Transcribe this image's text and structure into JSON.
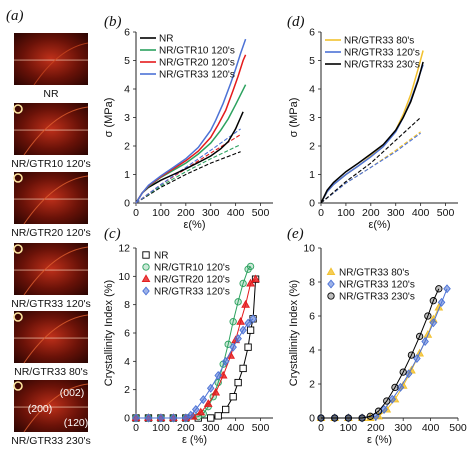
{
  "panel_a": {
    "letter": "(a)",
    "images": [
      {
        "caption": "NR"
      },
      {
        "caption": "NR/GTR10 120's"
      },
      {
        "caption": "NR/GTR20 120's"
      },
      {
        "caption": "NR/GTR33 120's"
      },
      {
        "caption": "NR/GTR33 80's"
      },
      {
        "caption": "NR/GTR33 230's",
        "labels": [
          "(002)",
          "(200)",
          "(120)"
        ]
      }
    ]
  },
  "colors": {
    "nr": "#000000",
    "gtr10": "#2ca25f",
    "gtr20": "#e41a1c",
    "gtr33": "#4c72d6",
    "gtr33_80": "#f2c12e"
  },
  "chart_data": [
    {
      "id": "b",
      "letter": "(b)",
      "type": "line",
      "xlabel": "ε(%)",
      "ylabel": "σ (MPa)",
      "xlim": [
        0,
        550
      ],
      "ylim": [
        0,
        6
      ],
      "xticks": [
        0,
        100,
        200,
        300,
        400,
        500
      ],
      "yticks": [
        0,
        1,
        2,
        3,
        4,
        5,
        6
      ],
      "legend_position": "top-left",
      "series": [
        {
          "name": "NR",
          "color": "#000000",
          "x": [
            0,
            25,
            50,
            100,
            150,
            200,
            250,
            300,
            340,
            370,
            400,
            420,
            430
          ],
          "y": [
            0,
            0.35,
            0.55,
            0.8,
            1.0,
            1.2,
            1.42,
            1.65,
            1.9,
            2.15,
            2.6,
            3.0,
            3.2
          ]
        },
        {
          "name": "NR/GTR10 120's",
          "color": "#2ca25f",
          "x": [
            0,
            25,
            50,
            100,
            150,
            200,
            250,
            300,
            340,
            370,
            400,
            420,
            440
          ],
          "y": [
            0,
            0.35,
            0.58,
            0.9,
            1.15,
            1.4,
            1.72,
            2.1,
            2.55,
            2.95,
            3.45,
            3.8,
            4.15
          ]
        },
        {
          "name": "NR/GTR20 120's",
          "color": "#e41a1c",
          "x": [
            0,
            25,
            50,
            100,
            150,
            200,
            250,
            300,
            330,
            360,
            390,
            410,
            430,
            440
          ],
          "y": [
            0,
            0.35,
            0.6,
            0.92,
            1.2,
            1.48,
            1.82,
            2.3,
            2.75,
            3.25,
            3.95,
            4.45,
            5.0,
            5.2
          ]
        },
        {
          "name": "NR/GTR33 120's",
          "color": "#4c72d6",
          "x": [
            0,
            25,
            50,
            100,
            150,
            200,
            250,
            300,
            320,
            350,
            380,
            400,
            420,
            440
          ],
          "y": [
            0,
            0.35,
            0.62,
            0.95,
            1.25,
            1.55,
            1.95,
            2.55,
            2.9,
            3.5,
            4.2,
            4.7,
            5.25,
            5.75
          ]
        }
      ],
      "fits": [
        {
          "color": "#000000",
          "x": [
            0,
            100,
            200,
            300,
            420
          ],
          "y": [
            0,
            0.55,
            1.0,
            1.4,
            1.8
          ]
        },
        {
          "color": "#2ca25f",
          "x": [
            0,
            100,
            200,
            300,
            420
          ],
          "y": [
            0,
            0.6,
            1.1,
            1.55,
            2.05
          ]
        },
        {
          "color": "#e41a1c",
          "x": [
            0,
            100,
            200,
            300,
            420
          ],
          "y": [
            0,
            0.65,
            1.2,
            1.75,
            2.4
          ]
        },
        {
          "color": "#4c72d6",
          "x": [
            0,
            100,
            200,
            300,
            420
          ],
          "y": [
            0,
            0.65,
            1.25,
            1.85,
            2.6
          ]
        }
      ]
    },
    {
      "id": "d",
      "letter": "(d)",
      "type": "line",
      "xlabel": "ε(%)",
      "ylabel": "σ (MPa)",
      "xlim": [
        0,
        550
      ],
      "ylim": [
        0,
        6
      ],
      "xticks": [
        0,
        100,
        200,
        300,
        400,
        500
      ],
      "yticks": [
        0,
        1,
        2,
        3,
        4,
        5,
        6
      ],
      "legend_position": "top-left",
      "series": [
        {
          "name": "NR/GTR33 80's",
          "color": "#f2c12e",
          "x": [
            0,
            25,
            50,
            100,
            150,
            200,
            250,
            300,
            330,
            360,
            390,
            410
          ],
          "y": [
            0,
            0.4,
            0.65,
            1.0,
            1.3,
            1.65,
            2.0,
            2.55,
            3.1,
            3.8,
            4.7,
            5.35
          ]
        },
        {
          "name": "NR/GTR33 120's",
          "color": "#4c72d6",
          "x": [
            0,
            25,
            50,
            100,
            150,
            200,
            250,
            300,
            330,
            360,
            390,
            410
          ],
          "y": [
            0,
            0.4,
            0.65,
            1.0,
            1.3,
            1.62,
            1.98,
            2.5,
            3.0,
            3.6,
            4.35,
            4.85
          ]
        },
        {
          "name": "NR/GTR33 230's",
          "color": "#000000",
          "x": [
            0,
            25,
            50,
            100,
            150,
            200,
            250,
            300,
            330,
            360,
            390,
            410
          ],
          "y": [
            0,
            0.45,
            0.72,
            1.1,
            1.4,
            1.72,
            2.05,
            2.55,
            3.0,
            3.55,
            4.3,
            4.95
          ]
        }
      ],
      "fits": [
        {
          "color": "#f2c12e",
          "x": [
            0,
            100,
            200,
            300,
            400
          ],
          "y": [
            0,
            0.7,
            1.25,
            1.85,
            2.5
          ]
        },
        {
          "color": "#4c72d6",
          "x": [
            0,
            100,
            200,
            300,
            400
          ],
          "y": [
            0,
            0.7,
            1.25,
            1.8,
            2.45
          ]
        },
        {
          "color": "#000000",
          "x": [
            0,
            100,
            200,
            300,
            400
          ],
          "y": [
            0,
            0.75,
            1.4,
            2.2,
            3.0
          ]
        }
      ]
    },
    {
      "id": "c",
      "letter": "(c)",
      "type": "scatter",
      "xlabel": "ε (%)",
      "ylabel": "Crystallinity Index (%)",
      "xlim": [
        0,
        550
      ],
      "ylim": [
        0,
        12
      ],
      "xticks": [
        0,
        100,
        200,
        300,
        400,
        500
      ],
      "yticks": [
        0,
        2,
        4,
        6,
        8,
        10,
        12
      ],
      "legend_position": "top-left",
      "series": [
        {
          "name": "NR",
          "marker": "square",
          "color": "#000000",
          "x": [
            0,
            50,
            100,
            150,
            200,
            250,
            300,
            330,
            360,
            390,
            410,
            430,
            450,
            460,
            470,
            480
          ],
          "y": [
            0,
            0,
            0,
            0,
            0,
            0,
            0,
            0.15,
            0.6,
            1.5,
            2.5,
            3.5,
            5.0,
            6.2,
            7.0,
            9.8
          ]
        },
        {
          "name": "NR/GTR10 120's",
          "marker": "circle",
          "color": "#2ca25f",
          "x": [
            0,
            50,
            100,
            150,
            200,
            250,
            270,
            290,
            310,
            330,
            350,
            370,
            390,
            410,
            430,
            450,
            460
          ],
          "y": [
            0,
            0,
            0,
            0,
            0,
            0.1,
            0.3,
            0.8,
            1.5,
            2.5,
            3.8,
            5.2,
            6.8,
            8.2,
            9.5,
            10.5,
            10.7
          ]
        },
        {
          "name": "NR/GTR20 120's",
          "marker": "triangle",
          "color": "#e41a1c",
          "x": [
            0,
            50,
            100,
            150,
            200,
            230,
            260,
            290,
            320,
            350,
            380,
            400,
            420,
            440,
            460,
            480
          ],
          "y": [
            0,
            0,
            0,
            0,
            0,
            0.1,
            0.4,
            1.0,
            1.8,
            3.0,
            4.4,
            5.5,
            6.8,
            8.0,
            9.5,
            9.8
          ]
        },
        {
          "name": "NR/GTR33 120's",
          "marker": "diamond",
          "color": "#4c72d6",
          "x": [
            0,
            50,
            100,
            150,
            200,
            220,
            240,
            270,
            300,
            330,
            360,
            390,
            410,
            430,
            450,
            470
          ],
          "y": [
            0,
            0,
            0,
            0,
            0,
            0.2,
            0.6,
            1.3,
            2.1,
            3.0,
            4.0,
            5.0,
            5.6,
            6.2,
            6.7,
            7.0
          ]
        }
      ]
    },
    {
      "id": "e",
      "letter": "(e)",
      "type": "scatter",
      "xlabel": "ε (%)",
      "ylabel": "Crystallinity Index (%)",
      "xlim": [
        0,
        500
      ],
      "ylim": [
        0,
        10
      ],
      "xticks": [
        0,
        100,
        200,
        300,
        400,
        500
      ],
      "yticks": [
        0,
        2,
        4,
        6,
        8,
        10
      ],
      "legend_position": "top-left",
      "series": [
        {
          "name": "NR/GTR33 80's",
          "marker": "triangle",
          "color": "#f2c12e",
          "x": [
            0,
            50,
            100,
            150,
            180,
            210,
            240,
            270,
            300,
            330,
            360,
            390,
            410,
            430
          ],
          "y": [
            0,
            0,
            0,
            0,
            0,
            0.1,
            0.5,
            1.1,
            1.9,
            2.8,
            3.8,
            4.9,
            5.8,
            6.5
          ]
        },
        {
          "name": "NR/GTR33 120's",
          "marker": "diamond",
          "color": "#4c72d6",
          "x": [
            0,
            50,
            100,
            150,
            200,
            230,
            260,
            290,
            320,
            350,
            380,
            410,
            440,
            460
          ],
          "y": [
            0,
            0,
            0,
            0,
            0.1,
            0.5,
            1.1,
            1.8,
            2.6,
            3.5,
            4.5,
            5.6,
            6.8,
            7.6
          ]
        },
        {
          "name": "NR/GTR33 230's",
          "marker": "circle",
          "color": "#000000",
          "x": [
            0,
            50,
            100,
            150,
            180,
            210,
            240,
            270,
            300,
            330,
            360,
            390,
            410,
            430
          ],
          "y": [
            0,
            0,
            0,
            0,
            0.1,
            0.4,
            1.0,
            1.8,
            2.7,
            3.7,
            4.8,
            6.0,
            6.9,
            7.6
          ]
        }
      ]
    }
  ]
}
